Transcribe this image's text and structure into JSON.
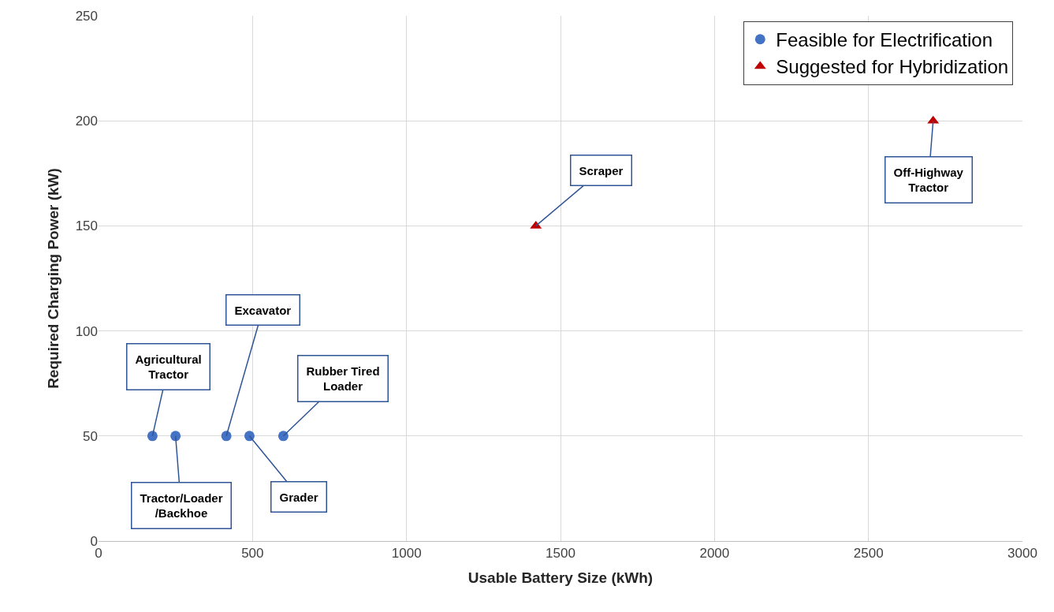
{
  "chart_data": {
    "type": "scatter",
    "xlabel": "Usable Battery Size (kWh)",
    "ylabel": "Required Charging Power (kW)",
    "series": [
      {
        "name": "Feasible for Electrification",
        "color": "#4472c4",
        "marker": "circle",
        "x": [
          175,
          250,
          415,
          490,
          600
        ],
        "values": [
          50,
          50,
          50,
          50,
          50
        ]
      },
      {
        "name": "Suggested for Hybridization",
        "color": "#c00000",
        "marker": "triangle",
        "x": [
          1420,
          2710
        ],
        "values": [
          150,
          200
        ]
      }
    ],
    "xlim": [
      0,
      3000
    ],
    "xticks": [
      0,
      500,
      1000,
      1500,
      2000,
      2500,
      3000
    ],
    "ylim": [
      0,
      250
    ],
    "yticks": [
      0,
      50,
      100,
      150,
      200,
      250
    ],
    "grid": true,
    "legend": "top right",
    "annotations": [
      {
        "text": "Agricultural\nTractor",
        "x": 175,
        "y": 50
      },
      {
        "text": "Tractor/Loader\n/Backhoe",
        "x": 250,
        "y": 50
      },
      {
        "text": "Excavator",
        "x": 415,
        "y": 50
      },
      {
        "text": "Grader",
        "x": 490,
        "y": 50
      },
      {
        "text": "Rubber Tired\nLoader",
        "x": 600,
        "y": 50
      },
      {
        "text": "Scraper",
        "x": 1420,
        "y": 150
      },
      {
        "text": "Off-Highway\nTractor",
        "x": 2710,
        "y": 200
      }
    ]
  }
}
